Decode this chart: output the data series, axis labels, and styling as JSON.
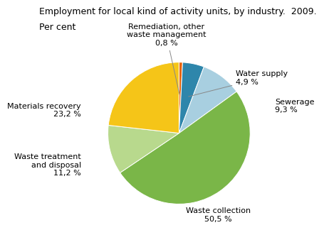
{
  "title": "Employment for local kind of activity units, by industry.  2009.",
  "subtitle": "Per cent",
  "slices": [
    {
      "label": "Remediation, other\nwaste management\n0,8 %",
      "value": 0.8,
      "color": "#e8640a"
    },
    {
      "label": "Water supply\n4,9 %",
      "value": 4.9,
      "color": "#2e86ab"
    },
    {
      "label": "Sewerage\n9,3 %",
      "value": 9.3,
      "color": "#a8cfe0"
    },
    {
      "label": "Waste collection\n50,5 %",
      "value": 50.5,
      "color": "#7ab648"
    },
    {
      "label": "Waste treatment\nand disposal\n11,2 %",
      "value": 11.2,
      "color": "#b8d98d"
    },
    {
      "label": "Materials recovery\n23,2 %",
      "value": 23.2,
      "color": "#f5c518"
    }
  ],
  "startangle": 90,
  "background_color": "#ffffff",
  "title_fontsize": 9,
  "label_fontsize": 8
}
